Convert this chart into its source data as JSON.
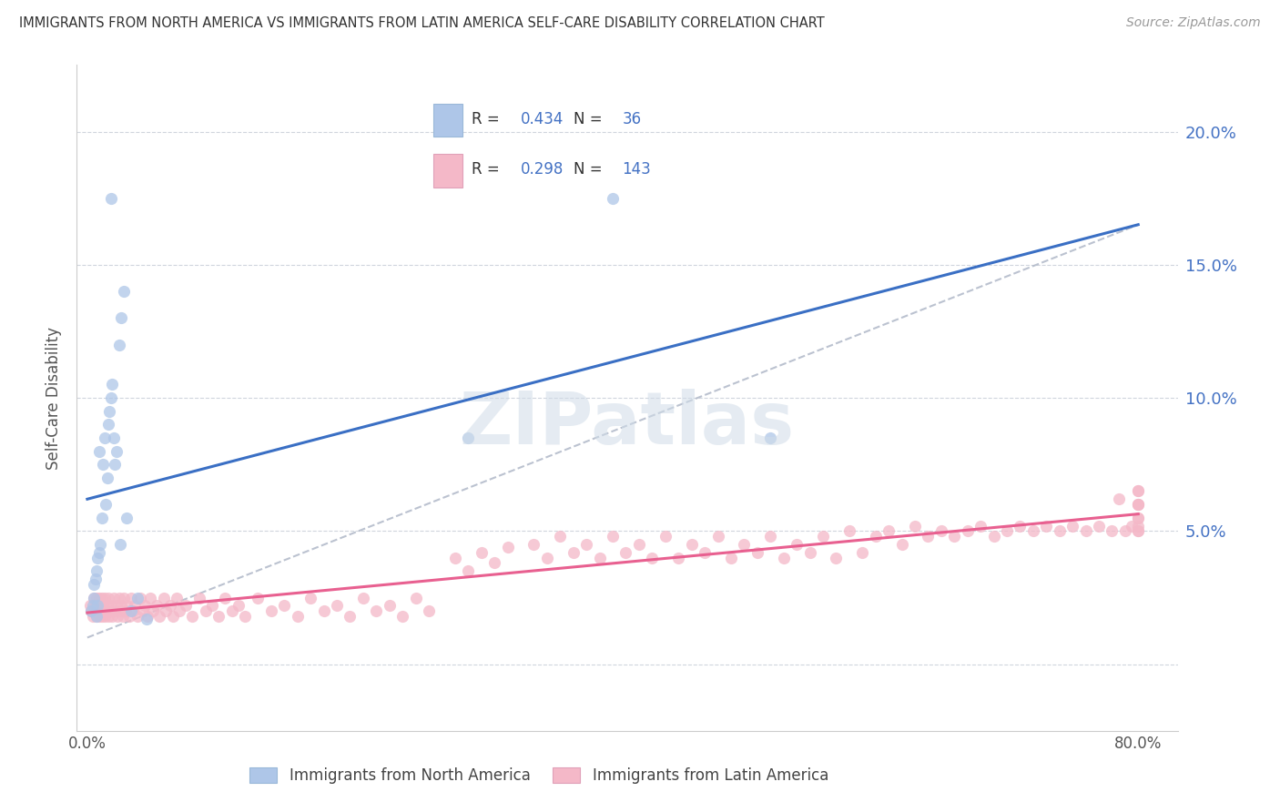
{
  "title": "IMMIGRANTS FROM NORTH AMERICA VS IMMIGRANTS FROM LATIN AMERICA SELF-CARE DISABILITY CORRELATION CHART",
  "source": "Source: ZipAtlas.com",
  "ylabel": "Self-Care Disability",
  "legend_label1": "Immigrants from North America",
  "legend_label2": "Immigrants from Latin America",
  "R1": 0.434,
  "N1": 36,
  "R2": 0.298,
  "N2": 143,
  "color_blue_fill": "#aec6e8",
  "color_pink_fill": "#f4b8c8",
  "color_blue_line": "#3a6fc4",
  "color_pink_line": "#e86090",
  "color_dashed": "#b0b8c8",
  "color_blue_text": "#4472c4",
  "color_axis_text": "#4472c4",
  "xlim": [
    0.0,
    0.8
  ],
  "ylim": [
    -0.025,
    0.225
  ],
  "yticks": [
    0.0,
    0.05,
    0.1,
    0.15,
    0.2
  ],
  "ytick_labels": [
    "",
    "5.0%",
    "10.0%",
    "15.0%",
    "20.0%"
  ],
  "blue_x": [
    0.003,
    0.004,
    0.005,
    0.005,
    0.006,
    0.007,
    0.007,
    0.008,
    0.008,
    0.009,
    0.009,
    0.01,
    0.011,
    0.012,
    0.013,
    0.014,
    0.015,
    0.016,
    0.017,
    0.018,
    0.019,
    0.02,
    0.021,
    0.022,
    0.024,
    0.026,
    0.028,
    0.03,
    0.033,
    0.038,
    0.045,
    0.018,
    0.025,
    0.4,
    0.52,
    0.29
  ],
  "blue_y": [
    0.02,
    0.022,
    0.025,
    0.03,
    0.032,
    0.018,
    0.035,
    0.04,
    0.022,
    0.042,
    0.08,
    0.045,
    0.055,
    0.075,
    0.085,
    0.06,
    0.07,
    0.09,
    0.095,
    0.1,
    0.105,
    0.085,
    0.075,
    0.08,
    0.12,
    0.13,
    0.14,
    0.055,
    0.02,
    0.025,
    0.017,
    0.175,
    0.045,
    0.175,
    0.085,
    0.085
  ],
  "pink_x": [
    0.002,
    0.003,
    0.004,
    0.005,
    0.006,
    0.007,
    0.007,
    0.008,
    0.008,
    0.009,
    0.009,
    0.01,
    0.01,
    0.011,
    0.011,
    0.012,
    0.012,
    0.013,
    0.013,
    0.014,
    0.015,
    0.016,
    0.016,
    0.017,
    0.018,
    0.019,
    0.02,
    0.021,
    0.022,
    0.023,
    0.024,
    0.025,
    0.026,
    0.027,
    0.028,
    0.029,
    0.03,
    0.032,
    0.033,
    0.035,
    0.036,
    0.038,
    0.04,
    0.042,
    0.044,
    0.046,
    0.048,
    0.05,
    0.053,
    0.055,
    0.058,
    0.06,
    0.063,
    0.065,
    0.068,
    0.07,
    0.075,
    0.08,
    0.085,
    0.09,
    0.095,
    0.1,
    0.105,
    0.11,
    0.115,
    0.12,
    0.13,
    0.14,
    0.15,
    0.16,
    0.17,
    0.18,
    0.19,
    0.2,
    0.21,
    0.22,
    0.23,
    0.24,
    0.25,
    0.26,
    0.28,
    0.29,
    0.3,
    0.31,
    0.32,
    0.34,
    0.35,
    0.36,
    0.37,
    0.38,
    0.39,
    0.4,
    0.41,
    0.42,
    0.43,
    0.44,
    0.45,
    0.46,
    0.47,
    0.48,
    0.49,
    0.5,
    0.51,
    0.52,
    0.53,
    0.54,
    0.55,
    0.56,
    0.57,
    0.58,
    0.59,
    0.6,
    0.61,
    0.62,
    0.63,
    0.64,
    0.65,
    0.66,
    0.67,
    0.68,
    0.69,
    0.7,
    0.71,
    0.72,
    0.73,
    0.74,
    0.75,
    0.76,
    0.77,
    0.78,
    0.785,
    0.79,
    0.795,
    0.8,
    0.8,
    0.8,
    0.8,
    0.8,
    0.8,
    0.8,
    0.8,
    0.8,
    0.8
  ],
  "pink_y": [
    0.022,
    0.02,
    0.018,
    0.025,
    0.022,
    0.018,
    0.025,
    0.02,
    0.022,
    0.018,
    0.025,
    0.02,
    0.022,
    0.018,
    0.025,
    0.02,
    0.022,
    0.018,
    0.025,
    0.02,
    0.022,
    0.018,
    0.025,
    0.02,
    0.022,
    0.018,
    0.025,
    0.02,
    0.022,
    0.018,
    0.025,
    0.02,
    0.022,
    0.018,
    0.025,
    0.02,
    0.022,
    0.018,
    0.025,
    0.02,
    0.022,
    0.018,
    0.025,
    0.02,
    0.022,
    0.018,
    0.025,
    0.02,
    0.022,
    0.018,
    0.025,
    0.02,
    0.022,
    0.018,
    0.025,
    0.02,
    0.022,
    0.018,
    0.025,
    0.02,
    0.022,
    0.018,
    0.025,
    0.02,
    0.022,
    0.018,
    0.025,
    0.02,
    0.022,
    0.018,
    0.025,
    0.02,
    0.022,
    0.018,
    0.025,
    0.02,
    0.022,
    0.018,
    0.025,
    0.02,
    0.04,
    0.035,
    0.042,
    0.038,
    0.044,
    0.045,
    0.04,
    0.048,
    0.042,
    0.045,
    0.04,
    0.048,
    0.042,
    0.045,
    0.04,
    0.048,
    0.04,
    0.045,
    0.042,
    0.048,
    0.04,
    0.045,
    0.042,
    0.048,
    0.04,
    0.045,
    0.042,
    0.048,
    0.04,
    0.05,
    0.042,
    0.048,
    0.05,
    0.045,
    0.052,
    0.048,
    0.05,
    0.048,
    0.05,
    0.052,
    0.048,
    0.05,
    0.052,
    0.05,
    0.052,
    0.05,
    0.052,
    0.05,
    0.052,
    0.05,
    0.062,
    0.05,
    0.052,
    0.052,
    0.065,
    0.05,
    0.055,
    0.06,
    0.055,
    0.05,
    0.06,
    0.06,
    0.065
  ]
}
